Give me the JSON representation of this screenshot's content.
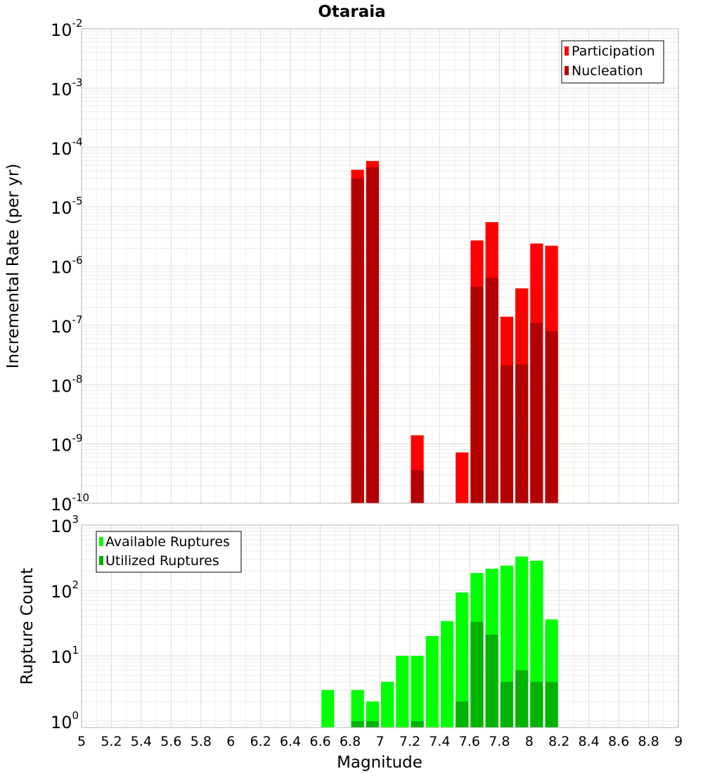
{
  "chart_data": [
    {
      "type": "bar",
      "title": "Otaraia",
      "xlabel": "",
      "ylabel": "Incremental Rate (per yr)",
      "yscale": "log",
      "ylim": [
        1e-10,
        0.01
      ],
      "xlim": [
        5,
        9
      ],
      "bin_width": 0.1,
      "grid": true,
      "legend_position": "top-right",
      "y_ticks": [
        {
          "base": "10",
          "exp": "-10"
        },
        {
          "base": "10",
          "exp": "-9"
        },
        {
          "base": "10",
          "exp": "-8"
        },
        {
          "base": "10",
          "exp": "-7"
        },
        {
          "base": "10",
          "exp": "-6"
        },
        {
          "base": "10",
          "exp": "-5"
        },
        {
          "base": "10",
          "exp": "-4"
        },
        {
          "base": "10",
          "exp": "-3"
        },
        {
          "base": "10",
          "exp": "-2"
        }
      ],
      "series": [
        {
          "name": "Participation",
          "color": "#ff0000",
          "points": [
            {
              "x": 6.85,
              "y": 4.2e-05
            },
            {
              "x": 6.95,
              "y": 5.9e-05
            },
            {
              "x": 7.25,
              "y": 1.4e-09
            },
            {
              "x": 7.55,
              "y": 7.2e-10
            },
            {
              "x": 7.65,
              "y": 2.7e-06
            },
            {
              "x": 7.75,
              "y": 5.5e-06
            },
            {
              "x": 7.85,
              "y": 1.4e-07
            },
            {
              "x": 7.95,
              "y": 4.2e-07
            },
            {
              "x": 8.05,
              "y": 2.4e-06
            },
            {
              "x": 8.15,
              "y": 2.2e-06
            }
          ]
        },
        {
          "name": "Nucleation",
          "color": "#b30000",
          "points": [
            {
              "x": 6.85,
              "y": 3e-05
            },
            {
              "x": 6.95,
              "y": 4.6e-05
            },
            {
              "x": 7.25,
              "y": 3.6e-10
            },
            {
              "x": 7.65,
              "y": 4.5e-07
            },
            {
              "x": 7.75,
              "y": 6.3e-07
            },
            {
              "x": 7.85,
              "y": 2.1e-08
            },
            {
              "x": 7.95,
              "y": 2.2e-08
            },
            {
              "x": 8.05,
              "y": 1.1e-07
            },
            {
              "x": 8.15,
              "y": 8e-08
            }
          ]
        }
      ]
    },
    {
      "type": "bar",
      "title": "",
      "xlabel": "Magnitude",
      "ylabel": "Rupture Count",
      "yscale": "log",
      "ylim": [
        0.8,
        1000
      ],
      "xlim": [
        5,
        9
      ],
      "bin_width": 0.1,
      "grid": true,
      "legend_position": "top-left",
      "x_ticks": [
        "5",
        "5.2",
        "5.4",
        "5.6",
        "5.8",
        "6",
        "6.2",
        "6.4",
        "6.6",
        "6.8",
        "7",
        "7.2",
        "7.4",
        "7.6",
        "7.8",
        "8",
        "8.2",
        "8.4",
        "8.6",
        "8.8",
        "9"
      ],
      "y_ticks": [
        {
          "base": "10",
          "exp": "0"
        },
        {
          "base": "10",
          "exp": "1"
        },
        {
          "base": "10",
          "exp": "2"
        },
        {
          "base": "10",
          "exp": "3"
        }
      ],
      "series": [
        {
          "name": "Available Ruptures",
          "color": "#00ff00",
          "points": [
            {
              "x": 6.65,
              "y": 3
            },
            {
              "x": 6.85,
              "y": 3
            },
            {
              "x": 6.95,
              "y": 2
            },
            {
              "x": 7.05,
              "y": 4
            },
            {
              "x": 7.15,
              "y": 10
            },
            {
              "x": 7.25,
              "y": 10
            },
            {
              "x": 7.35,
              "y": 20
            },
            {
              "x": 7.45,
              "y": 34
            },
            {
              "x": 7.55,
              "y": 93
            },
            {
              "x": 7.65,
              "y": 185
            },
            {
              "x": 7.75,
              "y": 215
            },
            {
              "x": 7.85,
              "y": 240
            },
            {
              "x": 7.95,
              "y": 330
            },
            {
              "x": 8.05,
              "y": 285
            },
            {
              "x": 8.15,
              "y": 36
            }
          ]
        },
        {
          "name": "Utilized Ruptures",
          "color": "#00b300",
          "points": [
            {
              "x": 6.85,
              "y": 1
            },
            {
              "x": 6.95,
              "y": 1
            },
            {
              "x": 7.25,
              "y": 1
            },
            {
              "x": 7.55,
              "y": 2
            },
            {
              "x": 7.65,
              "y": 33
            },
            {
              "x": 7.75,
              "y": 21
            },
            {
              "x": 7.85,
              "y": 4
            },
            {
              "x": 7.95,
              "y": 6
            },
            {
              "x": 8.05,
              "y": 4
            },
            {
              "x": 8.15,
              "y": 4
            }
          ]
        }
      ]
    }
  ]
}
